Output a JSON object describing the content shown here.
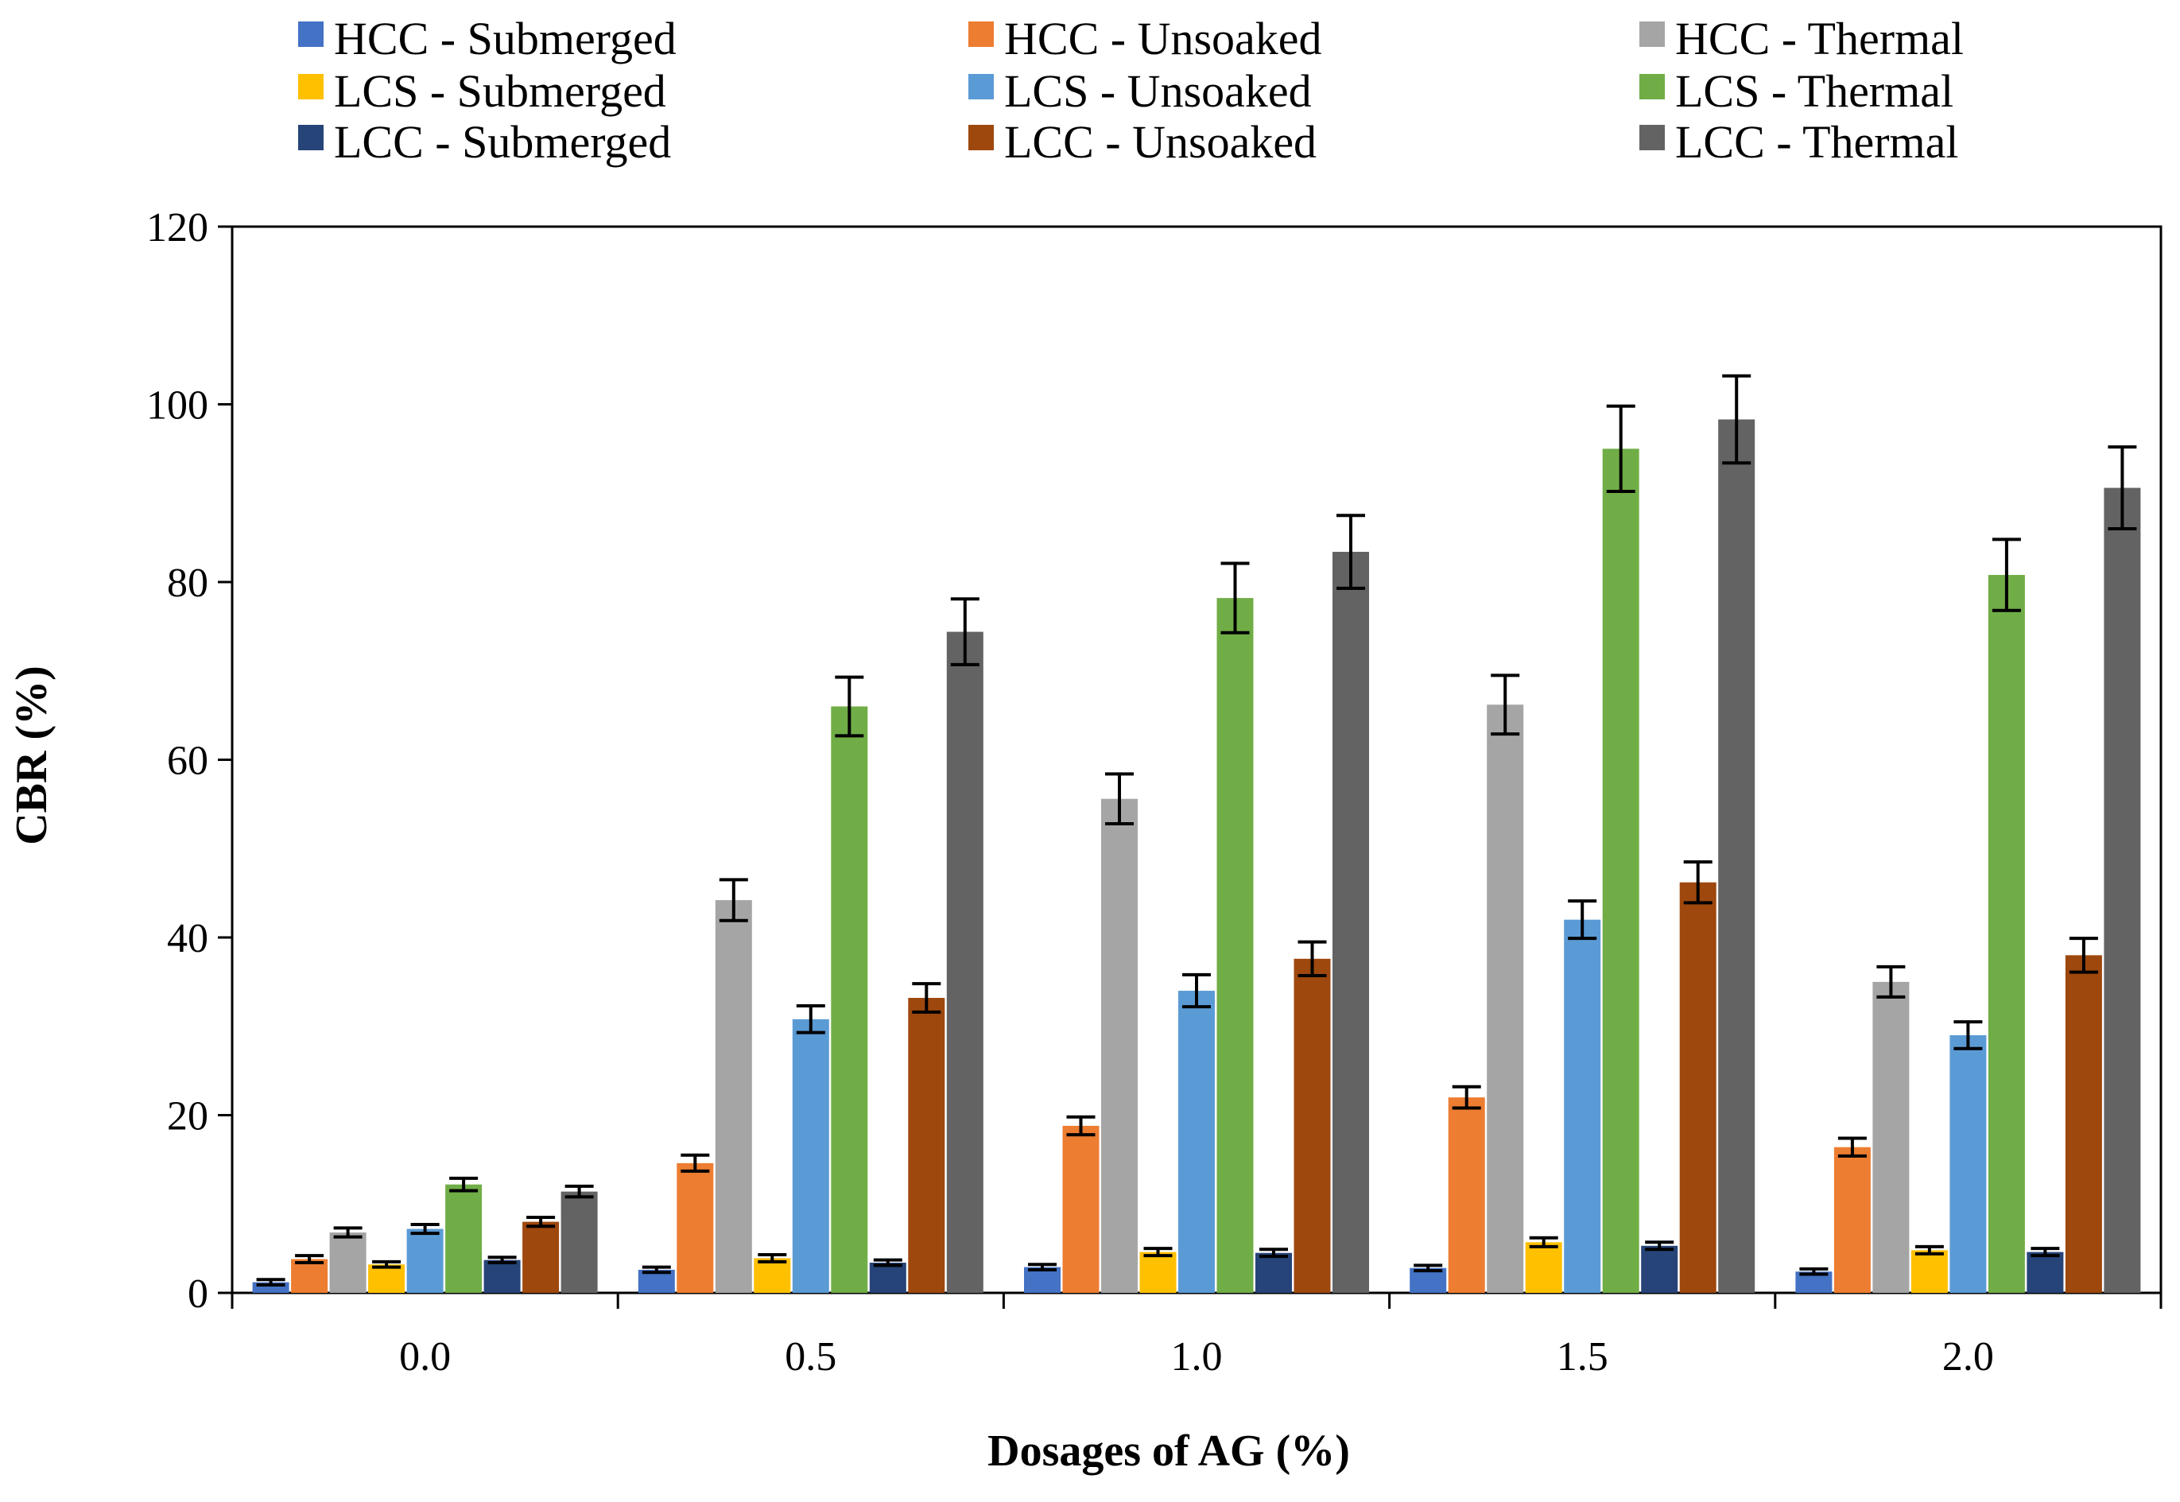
{
  "chart_data": {
    "type": "bar",
    "title": "",
    "xlabel": "Dosages of AG (%)",
    "ylabel": "CBR (%)",
    "ylim": [
      0,
      120
    ],
    "yticks": [
      0,
      20,
      40,
      60,
      80,
      100,
      120
    ],
    "grid": false,
    "legend_position": "top",
    "categories": [
      "0.0",
      "0.5",
      "1.0",
      "1.5",
      "2.0"
    ],
    "series": [
      {
        "name": "HCC - Submerged",
        "color": "#4472C4",
        "values": [
          1.2,
          2.6,
          2.9,
          2.8,
          2.4
        ],
        "errors": [
          0.3,
          0.3,
          0.3,
          0.3,
          0.3
        ]
      },
      {
        "name": "HCC - Unsoaked",
        "color": "#ED7D31",
        "values": [
          3.8,
          14.6,
          18.8,
          22.0,
          16.4
        ],
        "errors": [
          0.4,
          0.9,
          1.0,
          1.2,
          1.0
        ]
      },
      {
        "name": "HCC - Thermal",
        "color": "#A5A5A5",
        "values": [
          6.8,
          44.2,
          55.6,
          66.2,
          35.0
        ],
        "errors": [
          0.5,
          2.3,
          2.8,
          3.3,
          1.7
        ]
      },
      {
        "name": "LCS - Submerged",
        "color": "#FFC000",
        "values": [
          3.2,
          3.9,
          4.6,
          5.7,
          4.8
        ],
        "errors": [
          0.3,
          0.4,
          0.4,
          0.5,
          0.4
        ]
      },
      {
        "name": "LCS - Unsoaked",
        "color": "#5B9BD5",
        "values": [
          7.2,
          30.8,
          34.0,
          42.0,
          29.0
        ],
        "errors": [
          0.5,
          1.5,
          1.8,
          2.1,
          1.5
        ]
      },
      {
        "name": "LCS - Thermal",
        "color": "#70AD47",
        "values": [
          12.2,
          66.0,
          78.2,
          95.0,
          80.8
        ],
        "errors": [
          0.7,
          3.3,
          3.9,
          4.8,
          4.0
        ]
      },
      {
        "name": "LCC - Submerged",
        "color": "#264478",
        "values": [
          3.7,
          3.4,
          4.5,
          5.3,
          4.6
        ],
        "errors": [
          0.3,
          0.3,
          0.4,
          0.4,
          0.4
        ]
      },
      {
        "name": "LCC - Unsoaked",
        "color": "#9E480E",
        "values": [
          8.0,
          33.2,
          37.6,
          46.2,
          38.0
        ],
        "errors": [
          0.5,
          1.6,
          1.9,
          2.3,
          1.9
        ]
      },
      {
        "name": "LCC - Thermal",
        "color": "#636363",
        "values": [
          11.4,
          74.4,
          83.4,
          98.3,
          90.6
        ],
        "errors": [
          0.6,
          3.7,
          4.1,
          4.9,
          4.6
        ]
      }
    ]
  }
}
